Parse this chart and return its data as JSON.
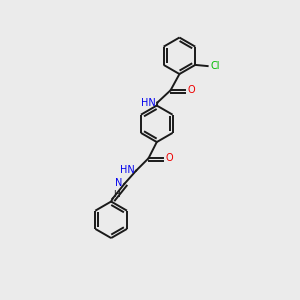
{
  "bg_color": "#ebebeb",
  "bond_color": "#1a1a1a",
  "atom_colors": {
    "N": "#0000ee",
    "O": "#ee0000",
    "Cl": "#00bb00",
    "C": "#1a1a1a",
    "H": "#1a1a1a"
  },
  "figsize": [
    3.0,
    3.0
  ],
  "dpi": 100
}
